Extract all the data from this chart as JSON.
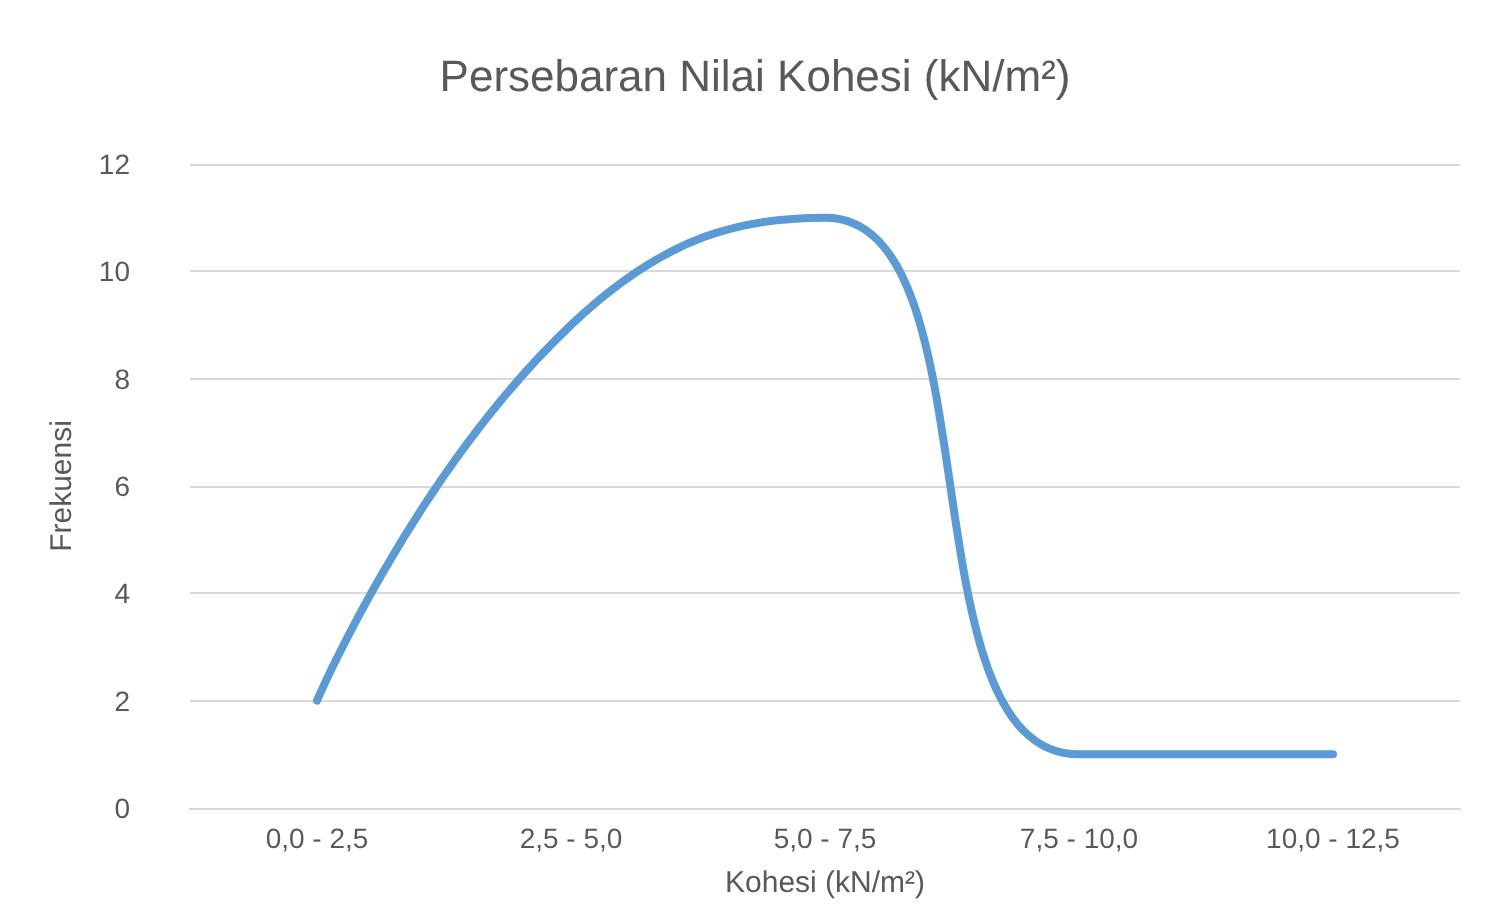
{
  "chart_data": {
    "type": "line",
    "title": "Persebaran Nilai Kohesi (kN/m²)",
    "xlabel": "Kohesi (kN/m²)",
    "ylabel": "Frekuensi",
    "categories": [
      "0,0 - 2,5",
      "2,5 - 5,0",
      "5,0 - 7,5",
      "7,5 - 10,0",
      "10,0 - 12,5"
    ],
    "series": [
      {
        "color": "#5b9bd5",
        "values": [
          2,
          9,
          11,
          1,
          1
        ]
      }
    ],
    "ylim": [
      0,
      12
    ],
    "yticks": [
      0,
      2,
      4,
      6,
      8,
      10,
      12
    ],
    "grid": "y",
    "marker": "none",
    "line_style": "solid"
  }
}
